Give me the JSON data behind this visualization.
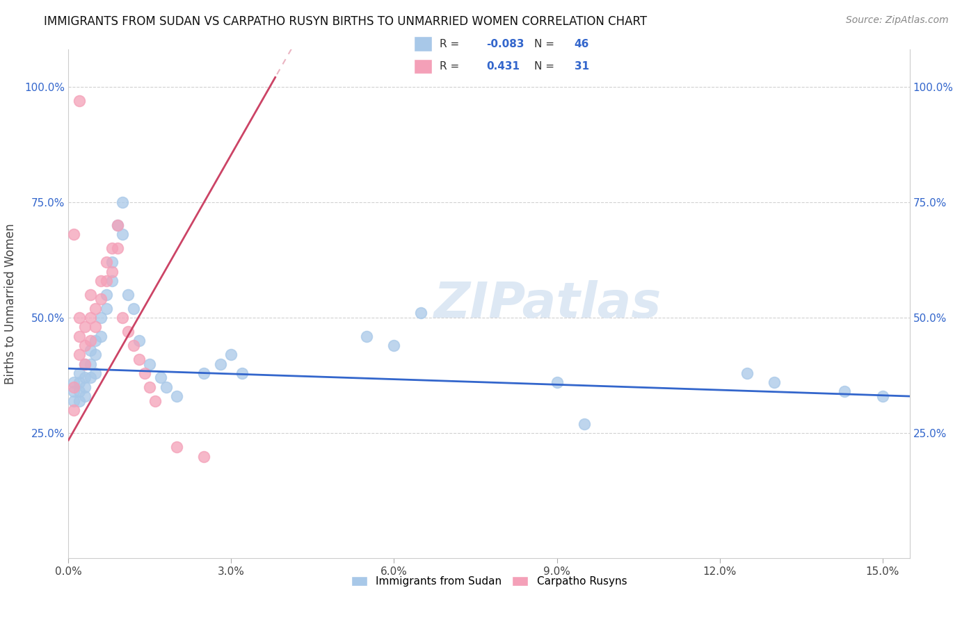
{
  "title": "IMMIGRANTS FROM SUDAN VS CARPATHO RUSYN BIRTHS TO UNMARRIED WOMEN CORRELATION CHART",
  "source": "Source: ZipAtlas.com",
  "ylabel": "Births to Unmarried Women",
  "xlim": [
    0.0,
    0.155
  ],
  "ylim": [
    -0.02,
    1.08
  ],
  "xtick_vals": [
    0.0,
    0.03,
    0.06,
    0.09,
    0.12,
    0.15
  ],
  "xtick_labels": [
    "0.0%",
    "3.0%",
    "6.0%",
    "9.0%",
    "12.0%",
    "15.0%"
  ],
  "ytick_vals": [
    0.25,
    0.5,
    0.75,
    1.0
  ],
  "ytick_labels": [
    "25.0%",
    "50.0%",
    "75.0%",
    "100.0%"
  ],
  "blue_color": "#a8c8e8",
  "pink_color": "#f4a0b8",
  "blue_line_color": "#3366cc",
  "pink_line_color": "#cc4466",
  "watermark_color": "#dde8f4",
  "grid_color": "#cccccc",
  "background_color": "#ffffff",
  "blue_scatter_x": [
    0.001,
    0.001,
    0.001,
    0.002,
    0.002,
    0.002,
    0.002,
    0.003,
    0.003,
    0.003,
    0.003,
    0.004,
    0.004,
    0.004,
    0.005,
    0.005,
    0.005,
    0.006,
    0.006,
    0.007,
    0.007,
    0.008,
    0.008,
    0.009,
    0.01,
    0.01,
    0.011,
    0.012,
    0.013,
    0.015,
    0.017,
    0.018,
    0.02,
    0.025,
    0.028,
    0.03,
    0.032,
    0.055,
    0.06,
    0.065,
    0.09,
    0.095,
    0.125,
    0.13,
    0.143,
    0.15
  ],
  "blue_scatter_y": [
    0.36,
    0.34,
    0.32,
    0.38,
    0.36,
    0.34,
    0.32,
    0.4,
    0.37,
    0.35,
    0.33,
    0.43,
    0.4,
    0.37,
    0.45,
    0.42,
    0.38,
    0.5,
    0.46,
    0.55,
    0.52,
    0.62,
    0.58,
    0.7,
    0.75,
    0.68,
    0.55,
    0.52,
    0.45,
    0.4,
    0.37,
    0.35,
    0.33,
    0.38,
    0.4,
    0.42,
    0.38,
    0.46,
    0.44,
    0.51,
    0.36,
    0.27,
    0.38,
    0.36,
    0.34,
    0.33
  ],
  "pink_scatter_x": [
    0.001,
    0.001,
    0.001,
    0.002,
    0.002,
    0.002,
    0.003,
    0.003,
    0.003,
    0.004,
    0.004,
    0.004,
    0.005,
    0.005,
    0.006,
    0.006,
    0.007,
    0.007,
    0.008,
    0.008,
    0.009,
    0.009,
    0.01,
    0.011,
    0.012,
    0.013,
    0.014,
    0.015,
    0.016,
    0.02,
    0.025
  ],
  "pink_scatter_y": [
    0.68,
    0.35,
    0.3,
    0.5,
    0.46,
    0.42,
    0.48,
    0.44,
    0.4,
    0.55,
    0.5,
    0.45,
    0.52,
    0.48,
    0.58,
    0.54,
    0.62,
    0.58,
    0.65,
    0.6,
    0.7,
    0.65,
    0.5,
    0.47,
    0.44,
    0.41,
    0.38,
    0.35,
    0.32,
    0.22,
    0.2
  ],
  "pink_outlier_x": [
    0.002
  ],
  "pink_outlier_y": [
    0.97
  ],
  "blue_line_x0": 0.0,
  "blue_line_y0": 0.39,
  "blue_line_x1": 0.155,
  "blue_line_y1": 0.33,
  "pink_line_x0": 0.0,
  "pink_line_y0": 0.235,
  "pink_line_x1": 0.025,
  "pink_line_y1": 0.75
}
